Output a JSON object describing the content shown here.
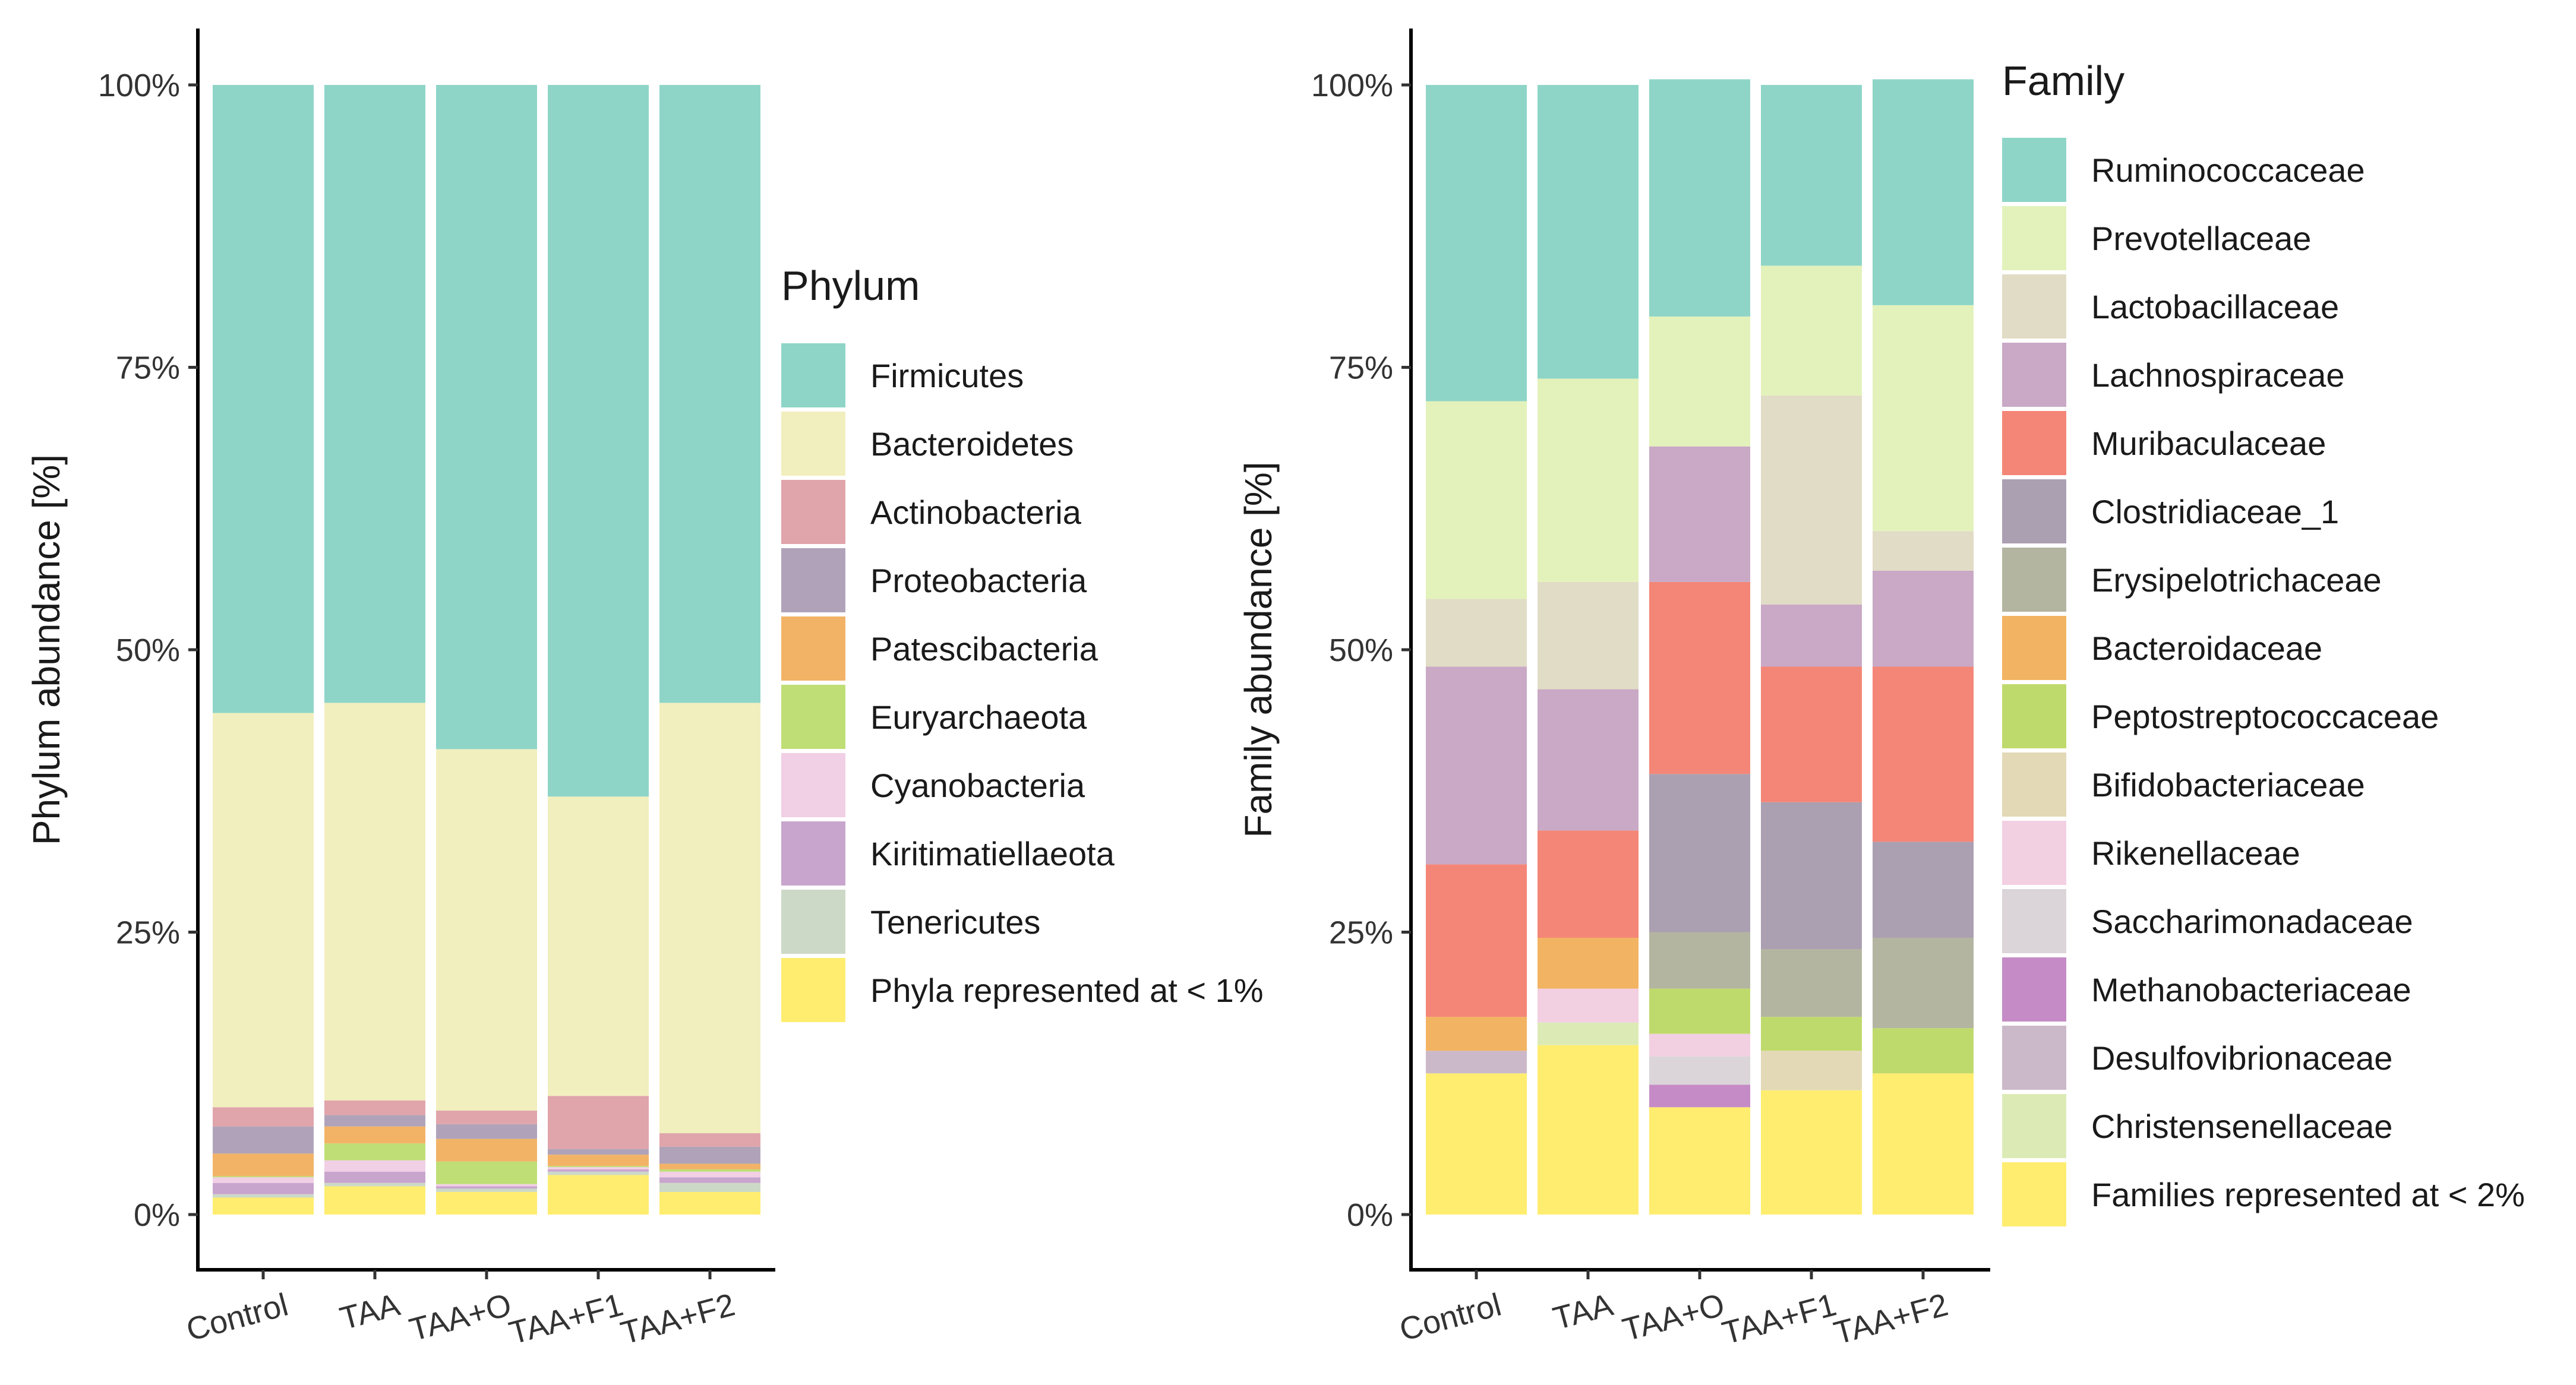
{
  "chart_data": [
    {
      "type": "bar",
      "stacked": true,
      "categories": [
        "Control",
        "TAA",
        "TAA+O",
        "TAA+F1",
        "TAA+F2"
      ],
      "ylabel": "Phylum abundance [%]",
      "xlabel": "",
      "ylim": [
        0,
        100
      ],
      "yticks": [
        "0%",
        "25%",
        "50%",
        "75%",
        "100%"
      ],
      "legend_title": "Phylum",
      "legend_position": "right",
      "series": [
        {
          "name": "Phyla represented at < 1%",
          "color": "#ffed6f",
          "values": [
            1.5,
            2.5,
            2.0,
            3.5,
            2.0
          ]
        },
        {
          "name": "Tenericutes",
          "color": "#ccd9c7",
          "values": [
            0.3,
            0.3,
            0.3,
            0.3,
            0.8
          ]
        },
        {
          "name": "Kiritimatiellaeota",
          "color": "#c8a5cd",
          "values": [
            1.0,
            1.0,
            0.2,
            0.2,
            0.5
          ]
        },
        {
          "name": "Cyanobacteria",
          "color": "#f1cfe4",
          "values": [
            0.5,
            1.0,
            0.2,
            0.2,
            0.5
          ]
        },
        {
          "name": "Euryarchaeota",
          "color": "#bfde75",
          "values": [
            0.1,
            1.5,
            2.0,
            0.1,
            0.2
          ]
        },
        {
          "name": "Patescibacteria",
          "color": "#f2b366",
          "values": [
            2.0,
            1.5,
            2.0,
            1.0,
            0.5
          ]
        },
        {
          "name": "Proteobacteria",
          "color": "#b0a3b9",
          "values": [
            2.4,
            1.0,
            1.3,
            0.5,
            1.5
          ]
        },
        {
          "name": "Actinobacteria",
          "color": "#e0a4ab",
          "values": [
            1.7,
            1.3,
            1.2,
            4.7,
            1.2
          ]
        },
        {
          "name": "Bacteroidetes",
          "color": "#f2efbe",
          "values": [
            34.9,
            35.2,
            32.0,
            26.5,
            38.1
          ]
        },
        {
          "name": "Firmicutes",
          "color": "#8ed5c8",
          "values": [
            55.6,
            54.7,
            58.8,
            63.0,
            54.7
          ]
        }
      ]
    },
    {
      "type": "bar",
      "stacked": true,
      "categories": [
        "Control",
        "TAA",
        "TAA+O",
        "TAA+F1",
        "TAA+F2"
      ],
      "ylabel": "Family abundance [%]",
      "xlabel": "",
      "ylim": [
        0,
        100
      ],
      "yticks": [
        "0%",
        "25%",
        "50%",
        "75%",
        "100%"
      ],
      "legend_title": "Family",
      "legend_position": "right",
      "series": [
        {
          "name": "Families represented at < 2%",
          "color": "#ffed6f",
          "values": [
            12.5,
            15.0,
            9.5,
            11.0,
            12.5
          ]
        },
        {
          "name": "Christensenellaceae",
          "color": "#dcebb5",
          "values": [
            0,
            2.0,
            0,
            0,
            0
          ]
        },
        {
          "name": "Desulfovibrionaceae",
          "color": "#cbb9c9",
          "values": [
            2.0,
            0,
            0,
            0,
            0
          ]
        },
        {
          "name": "Methanobacteriaceae",
          "color": "#c58bc6",
          "values": [
            0,
            0,
            2.0,
            0,
            0
          ]
        },
        {
          "name": "Saccharimonadaceae",
          "color": "#dbd5d9",
          "values": [
            0,
            0,
            2.5,
            0,
            0
          ]
        },
        {
          "name": "Rikenellaceae",
          "color": "#f3cfe2",
          "values": [
            0,
            3.0,
            2.0,
            0,
            0
          ]
        },
        {
          "name": "Bifidobacteriaceae",
          "color": "#e3d9b6",
          "values": [
            0,
            0,
            0,
            3.5,
            0
          ]
        },
        {
          "name": "Peptostreptococcaceae",
          "color": "#bfda6c",
          "values": [
            0,
            0,
            4.0,
            3.0,
            4.0
          ]
        },
        {
          "name": "Bacteroidaceae",
          "color": "#f2b462",
          "values": [
            3.0,
            4.5,
            0,
            0,
            0
          ]
        },
        {
          "name": "Erysipelotrichaceae",
          "color": "#b4b5a1",
          "values": [
            0,
            0,
            5.0,
            6.0,
            8.0
          ]
        },
        {
          "name": "Clostridiaceae_1",
          "color": "#aba0b1",
          "values": [
            0,
            0,
            14.0,
            13.0,
            8.5
          ]
        },
        {
          "name": "Muribaculaceae",
          "color": "#f48677",
          "values": [
            13.5,
            9.5,
            17.0,
            12.0,
            15.5
          ]
        },
        {
          "name": "Lachnospiraceae",
          "color": "#c9a9c6",
          "values": [
            17.5,
            12.5,
            12.0,
            5.5,
            8.5
          ]
        },
        {
          "name": "Lactobacillaceae",
          "color": "#e1dcc5",
          "values": [
            6.0,
            9.5,
            0,
            18.5,
            3.5
          ]
        },
        {
          "name": "Prevotellaceae",
          "color": "#e3f2bb",
          "values": [
            17.5,
            18.0,
            11.5,
            11.5,
            20.0
          ]
        },
        {
          "name": "Ruminococcaceae",
          "color": "#8ed5c8",
          "values": [
            28.0,
            26.0,
            21.0,
            16.0,
            20.0
          ]
        }
      ]
    }
  ]
}
